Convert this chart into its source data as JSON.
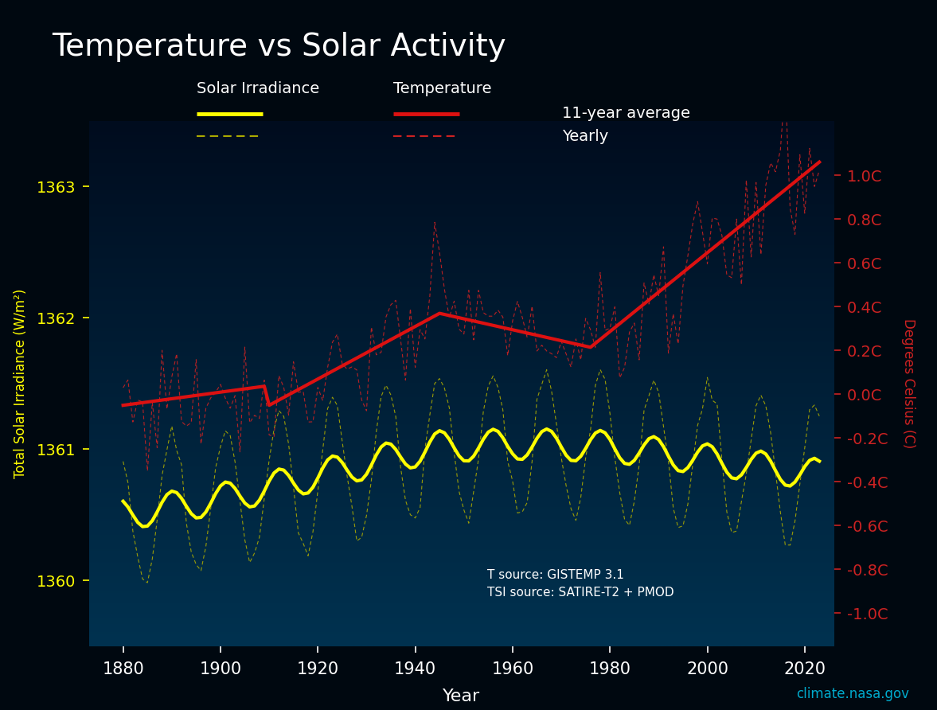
{
  "title": "Temperature vs Solar Activity",
  "xlabel": "Year",
  "ylabel_left": "Total Solar Irradiance (W/m²)",
  "ylabel_right": "Degrees Celsius (C)",
  "background_color": "#000810",
  "title_color": "#ffffff",
  "axis_color": "#ffffff",
  "solar_avg_color": "#ffff00",
  "solar_yearly_color": "#aaaa00",
  "temp_avg_color": "#dd1111",
  "temp_yearly_color": "#cc2222",
  "left_tick_color": "#ffff00",
  "right_tick_color": "#cc2222",
  "source_text": "T source: GISTEMP 3.1\nTSI source: SATIRE-T2 + PMOD",
  "website_text": "climate.nasa.gov",
  "website_color": "#00aacc",
  "xlim": [
    1873,
    2026
  ],
  "tsi_ylim": [
    1359.5,
    1363.5
  ],
  "temp_ylim": [
    -1.15,
    1.25
  ],
  "tsi_ticks": [
    1360,
    1361,
    1362,
    1363
  ],
  "temp_ticks": [
    -1.0,
    -0.8,
    -0.6,
    -0.4,
    -0.2,
    0.0,
    0.2,
    0.4,
    0.6,
    0.8,
    1.0
  ],
  "xticks": [
    1880,
    1900,
    1920,
    1940,
    1960,
    1980,
    2000,
    2020
  ],
  "legend_11yr": "11-year average",
  "legend_yearly": "Yearly",
  "legend_solar": "Solar Irradiance",
  "legend_temp": "Temperature"
}
